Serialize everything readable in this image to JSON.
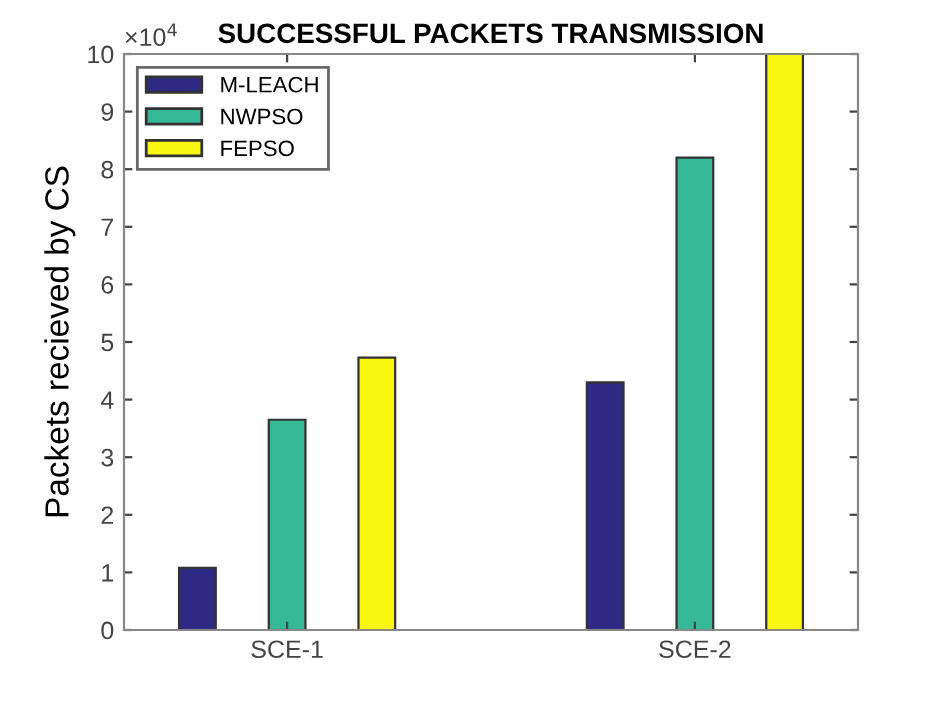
{
  "chart_data": {
    "type": "bar",
    "title": "SUCCESSFUL PACKETS TRANSMISSION",
    "ylabel": "Packets recieved by CS",
    "categories": [
      "SCE-1",
      "SCE-2"
    ],
    "series": [
      {
        "name": "M-LEACH",
        "color": "#2e2a84",
        "values": [
          1.08,
          4.3
        ]
      },
      {
        "name": "NWPSO",
        "color": "#34b896",
        "values": [
          3.65,
          8.2
        ]
      },
      {
        "name": "FEPSO",
        "color": "#f7f70f",
        "values": [
          4.73,
          10.0
        ]
      }
    ],
    "ylim": [
      0,
      10
    ],
    "yticks": [
      0,
      1,
      2,
      3,
      4,
      5,
      6,
      7,
      8,
      9,
      10
    ],
    "annotations": [
      "×10$^{4}$"
    ],
    "legend": "top left",
    "grid": false
  }
}
